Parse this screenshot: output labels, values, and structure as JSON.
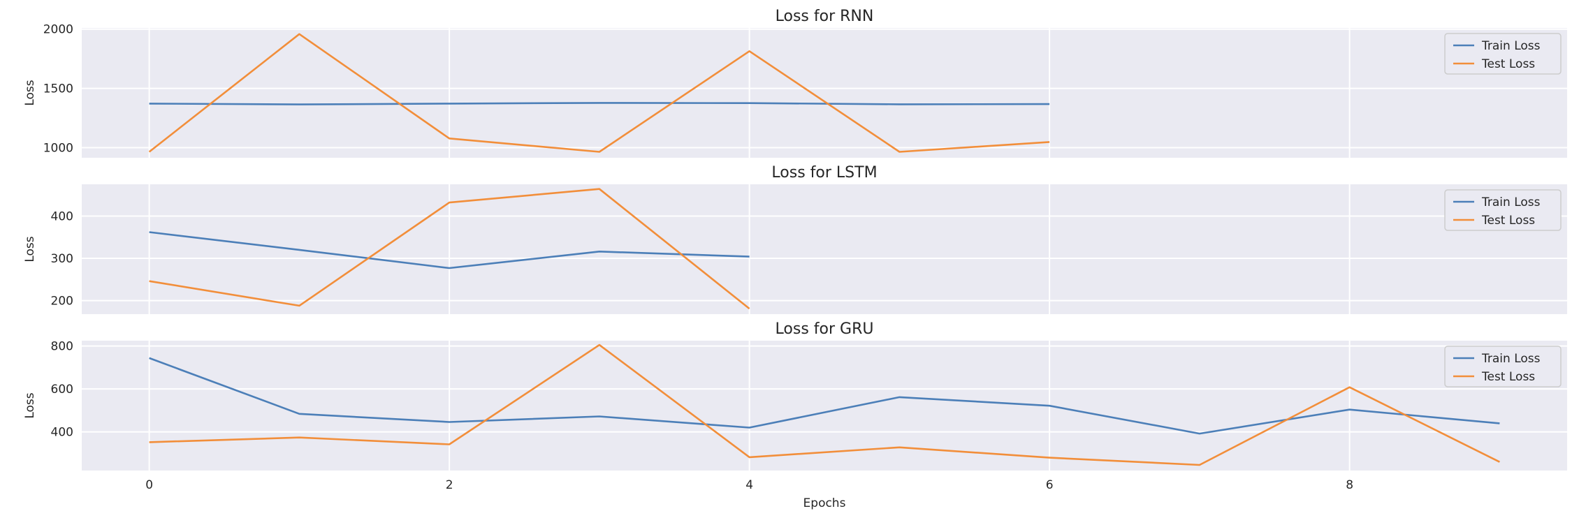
{
  "chart_data": [
    {
      "type": "line",
      "title": "Loss for RNN",
      "ylabel": "Loss",
      "xlabel": "",
      "xlim": [
        -0.45,
        9.45
      ],
      "ylim": [
        915,
        2010
      ],
      "yticks": [
        1000,
        1500,
        2000
      ],
      "xticks": [
        0,
        2,
        4,
        6,
        8
      ],
      "show_xtick_labels": false,
      "grid": true,
      "legend": "top-right",
      "series": [
        {
          "name": "Train Loss",
          "color": "#4c7fb8",
          "x": [
            0,
            1,
            2,
            3,
            4,
            5,
            6
          ],
          "values": [
            1372,
            1365,
            1372,
            1378,
            1376,
            1366,
            1368
          ]
        },
        {
          "name": "Test Loss",
          "color": "#f28e3a",
          "x": [
            0,
            1,
            2,
            3,
            4,
            5,
            6
          ],
          "values": [
            965,
            1958,
            1078,
            965,
            1814,
            965,
            1048
          ]
        }
      ]
    },
    {
      "type": "line",
      "title": "Loss for LSTM",
      "ylabel": "Loss",
      "xlabel": "",
      "xlim": [
        -0.45,
        9.45
      ],
      "ylim": [
        168,
        475
      ],
      "yticks": [
        200,
        300,
        400
      ],
      "xticks": [
        0,
        2,
        4,
        6,
        8
      ],
      "show_xtick_labels": false,
      "grid": true,
      "legend": "top-right",
      "series": [
        {
          "name": "Train Loss",
          "color": "#4c7fb8",
          "x": [
            0,
            1,
            2,
            3,
            4
          ],
          "values": [
            362,
            320,
            277,
            316,
            304
          ]
        },
        {
          "name": "Test Loss",
          "color": "#f28e3a",
          "x": [
            0,
            1,
            2,
            3,
            4
          ],
          "values": [
            246,
            188,
            432,
            464,
            181
          ]
        }
      ]
    },
    {
      "type": "line",
      "title": "Loss for GRU",
      "ylabel": "Loss",
      "xlabel": "Epochs",
      "xlim": [
        -0.45,
        9.45
      ],
      "ylim": [
        220,
        825
      ],
      "yticks": [
        400,
        600,
        800
      ],
      "xticks": [
        0,
        2,
        4,
        6,
        8
      ],
      "show_xtick_labels": true,
      "grid": true,
      "legend": "top-right",
      "series": [
        {
          "name": "Train Loss",
          "color": "#4c7fb8",
          "x": [
            0,
            1,
            2,
            3,
            4,
            5,
            6,
            7,
            8,
            9
          ],
          "values": [
            744,
            484,
            446,
            472,
            420,
            562,
            522,
            392,
            504,
            440
          ]
        },
        {
          "name": "Test Loss",
          "color": "#f28e3a",
          "x": [
            0,
            1,
            2,
            3,
            4,
            5,
            6,
            7,
            8,
            9
          ],
          "values": [
            352,
            374,
            342,
            805,
            282,
            328,
            280,
            246,
            608,
            260
          ]
        }
      ]
    }
  ]
}
